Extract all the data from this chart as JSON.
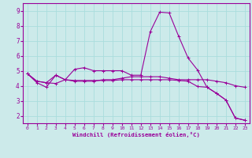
{
  "background_color": "#cceaea",
  "grid_color": "#aadddd",
  "line_color": "#990099",
  "xlabel": "Windchill (Refroidissement éolien,°C)",
  "ylabel": "",
  "xlim": [
    -0.5,
    23.5
  ],
  "ylim": [
    1.5,
    9.5
  ],
  "xticks": [
    0,
    1,
    2,
    3,
    4,
    5,
    6,
    7,
    8,
    9,
    10,
    11,
    12,
    13,
    14,
    15,
    16,
    17,
    18,
    19,
    20,
    21,
    22,
    23
  ],
  "yticks": [
    2,
    3,
    4,
    5,
    6,
    7,
    8,
    9
  ],
  "series": [
    [
      4.8,
      4.3,
      4.2,
      4.7,
      4.4,
      4.3,
      4.3,
      4.3,
      4.4,
      4.4,
      4.5,
      4.6,
      4.6,
      4.6,
      4.6,
      4.5,
      4.4,
      4.4,
      4.4,
      4.4,
      4.3,
      4.2,
      4.0,
      3.9
    ],
    [
      4.8,
      4.2,
      3.9,
      4.7,
      4.4,
      5.1,
      5.2,
      5.0,
      5.0,
      5.0,
      5.0,
      4.7,
      4.7,
      7.6,
      8.9,
      8.85,
      7.3,
      5.85,
      5.05,
      3.9,
      3.5,
      3.05,
      1.85,
      1.7
    ],
    [
      4.8,
      4.3,
      4.2,
      4.15,
      4.4,
      4.35,
      4.35,
      4.35,
      4.35,
      4.35,
      4.4,
      4.4,
      4.4,
      4.4,
      4.4,
      4.4,
      4.35,
      4.3,
      3.95,
      3.9,
      3.5,
      3.05,
      1.85,
      1.7
    ]
  ]
}
